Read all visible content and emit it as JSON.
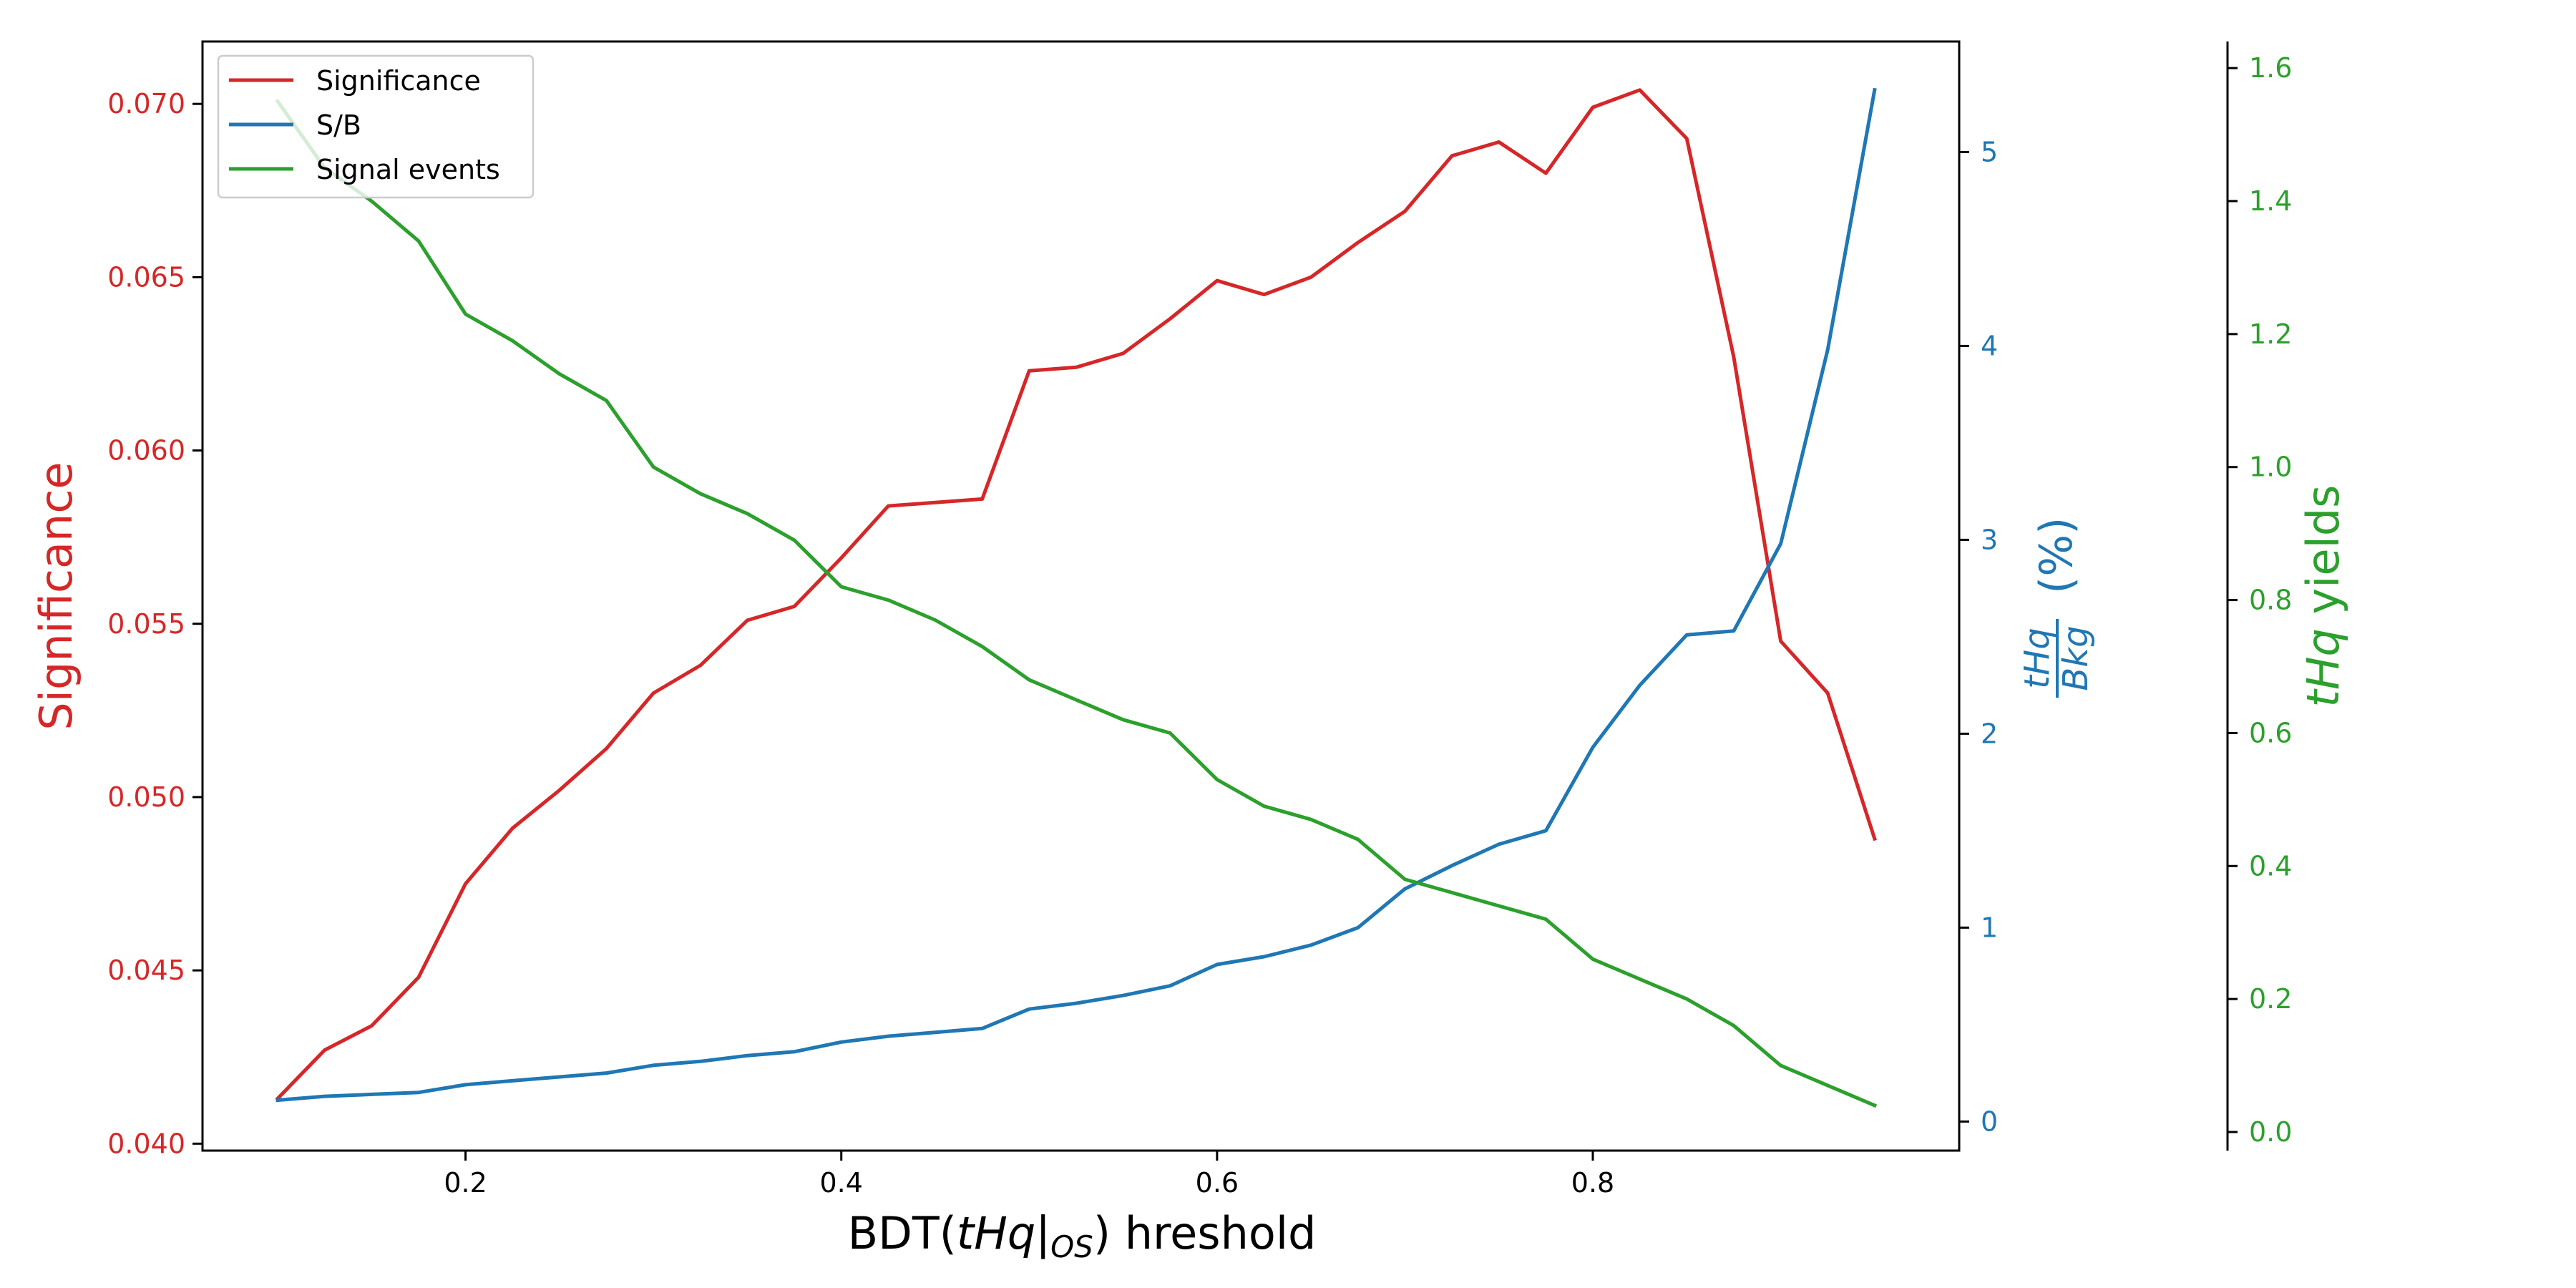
{
  "chart_data": {
    "type": "line",
    "x": [
      0.1,
      0.125,
      0.15,
      0.175,
      0.2,
      0.225,
      0.25,
      0.275,
      0.3,
      0.325,
      0.35,
      0.375,
      0.4,
      0.425,
      0.45,
      0.475,
      0.5,
      0.525,
      0.55,
      0.575,
      0.6,
      0.625,
      0.65,
      0.675,
      0.7,
      0.725,
      0.75,
      0.775,
      0.8,
      0.825,
      0.85,
      0.875,
      0.9,
      0.925,
      0.95
    ],
    "xlabel": {
      "prefix": "BDT(",
      "italic": "tHq",
      "bar": "|",
      "subscript": "OS",
      "suffix": ") hreshold"
    },
    "xlim": [
      0.06,
      0.995
    ],
    "xticks": [
      0.2,
      0.4,
      0.6,
      0.8
    ],
    "xtick_labels": [
      "0.2",
      "0.4",
      "0.6",
      "0.8"
    ],
    "series": [
      {
        "name": "Significance",
        "color": "#d62728",
        "axis": "left",
        "values": [
          0.0413,
          0.0427,
          0.0434,
          0.0448,
          0.0475,
          0.0491,
          0.0502,
          0.0514,
          0.053,
          0.0538,
          0.0551,
          0.0555,
          0.0569,
          0.0584,
          0.0585,
          0.0586,
          0.0623,
          0.0624,
          0.0628,
          0.0638,
          0.0649,
          0.0645,
          0.065,
          0.066,
          0.0669,
          0.0685,
          0.0689,
          0.068,
          0.0699,
          0.0704,
          0.069,
          0.0627,
          0.0545,
          0.053,
          0.0488
        ]
      },
      {
        "name": "S/B",
        "color": "#1f77b4",
        "axis": "right",
        "values": [
          0.11,
          0.13,
          0.14,
          0.15,
          0.19,
          0.21,
          0.23,
          0.25,
          0.29,
          0.31,
          0.34,
          0.36,
          0.41,
          0.44,
          0.46,
          0.48,
          0.58,
          0.61,
          0.65,
          0.7,
          0.81,
          0.85,
          0.91,
          1.0,
          1.2,
          1.32,
          1.43,
          1.5,
          1.93,
          2.25,
          2.51,
          2.53,
          2.98,
          3.98,
          5.32
        ]
      },
      {
        "name": "Signal events",
        "color": "#2ca02c",
        "axis": "far_right",
        "values": [
          1.55,
          1.45,
          1.4,
          1.34,
          1.23,
          1.19,
          1.14,
          1.1,
          1.0,
          0.96,
          0.93,
          0.89,
          0.82,
          0.8,
          0.77,
          0.73,
          0.68,
          0.65,
          0.62,
          0.6,
          0.53,
          0.49,
          0.47,
          0.44,
          0.38,
          0.36,
          0.34,
          0.32,
          0.26,
          0.23,
          0.2,
          0.16,
          0.1,
          0.07,
          0.04
        ]
      }
    ],
    "axes": {
      "left": {
        "label": "Significance",
        "color": "#d62728",
        "ylim": [
          0.0398,
          0.0718
        ],
        "ticks": [
          0.04,
          0.045,
          0.05,
          0.055,
          0.06,
          0.065,
          0.07
        ],
        "tick_labels": [
          "0.040",
          "0.045",
          "0.050",
          "0.055",
          "0.060",
          "0.065",
          "0.070"
        ]
      },
      "right": {
        "label_numerator": "tHq",
        "label_denominator": "Bkg",
        "label_suffix": "(%)",
        "color": "#1f77b4",
        "ylim": [
          -0.15,
          5.57
        ],
        "ticks": [
          0,
          1,
          2,
          3,
          4,
          5
        ],
        "tick_labels": [
          "0",
          "1",
          "2",
          "3",
          "4",
          "5"
        ]
      },
      "far_right": {
        "label_italic": "tHq",
        "label_suffix": " yields",
        "color": "#2ca02c",
        "ylim": [
          -0.028,
          1.64
        ],
        "ticks": [
          0.0,
          0.2,
          0.4,
          0.6,
          0.8,
          1.0,
          1.2,
          1.4,
          1.6
        ],
        "tick_labels": [
          "0.0",
          "0.2",
          "0.4",
          "0.6",
          "0.8",
          "1.0",
          "1.2",
          "1.4",
          "1.6"
        ]
      }
    },
    "legend": {
      "placement": "upper-left",
      "entries": [
        "Significance",
        "S/B",
        "Signal events"
      ]
    },
    "grid": false
  }
}
